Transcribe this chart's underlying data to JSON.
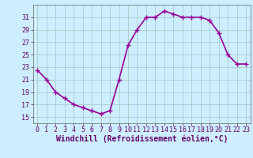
{
  "x": [
    0,
    1,
    2,
    3,
    4,
    5,
    6,
    7,
    8,
    9,
    10,
    11,
    12,
    13,
    14,
    15,
    16,
    17,
    18,
    19,
    20,
    21,
    22,
    23
  ],
  "y": [
    22.5,
    21.0,
    19.0,
    18.0,
    17.0,
    16.5,
    16.0,
    15.5,
    16.0,
    21.0,
    26.5,
    29.0,
    31.0,
    31.0,
    32.0,
    31.5,
    31.0,
    31.0,
    31.0,
    30.5,
    28.5,
    25.0,
    23.5,
    23.5
  ],
  "line_color": "#990099",
  "marker": "+",
  "marker_size": 4,
  "marker_color": "#990099",
  "xlabel": "Windchill (Refroidissement éolien,°C)",
  "xlabel_fontsize": 7,
  "background_color": "#cceeff",
  "grid_color": "#aacccc",
  "ylim": [
    14,
    33
  ],
  "xlim": [
    -0.5,
    23.5
  ],
  "yticks": [
    15,
    17,
    19,
    21,
    23,
    25,
    27,
    29,
    31
  ],
  "xticks": [
    0,
    1,
    2,
    3,
    4,
    5,
    6,
    7,
    8,
    9,
    10,
    11,
    12,
    13,
    14,
    15,
    16,
    17,
    18,
    19,
    20,
    21,
    22,
    23
  ],
  "tick_fontsize": 6,
  "linewidth": 1.2
}
